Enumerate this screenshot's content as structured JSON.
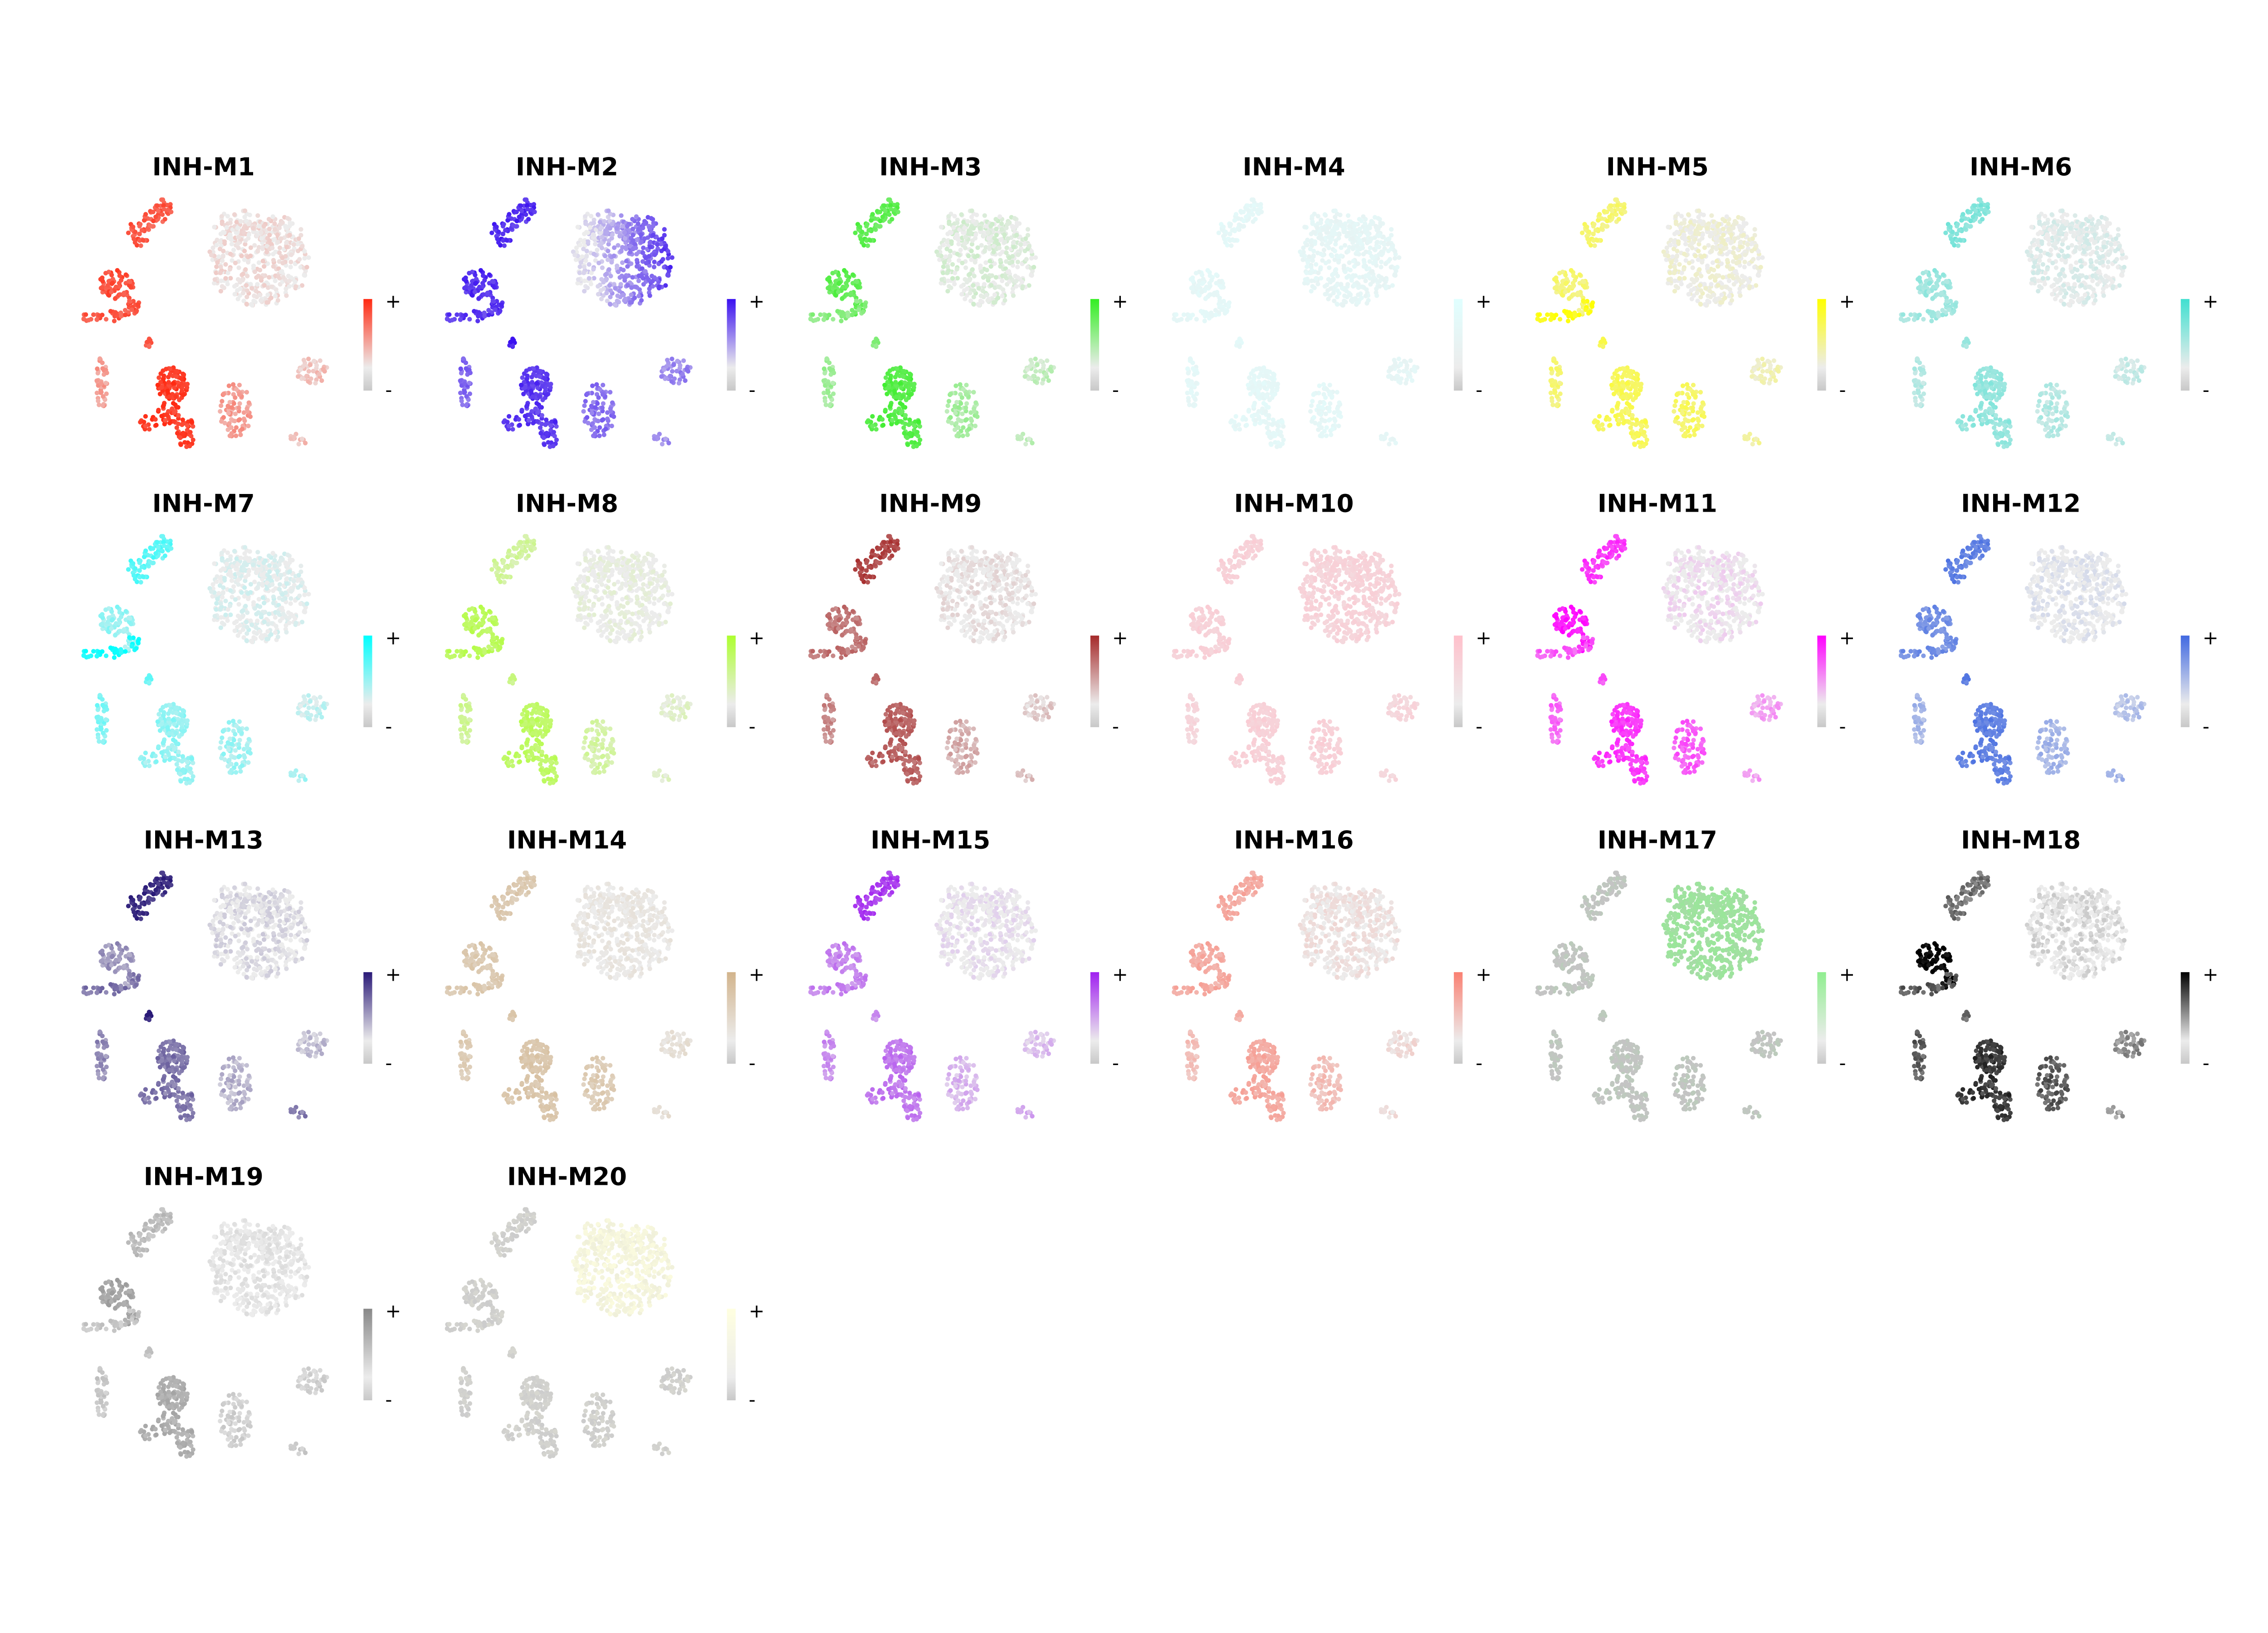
{
  "chart_data": {
    "type": "scatter",
    "subtype": "umap-feature-grid",
    "colorbar_labels": {
      "max": "+",
      "min": "-"
    },
    "clusters": [
      "top-left-upper",
      "left-middle",
      "left-tail",
      "small-streak",
      "left-vertical",
      "bottom-center",
      "bottom-right-mid",
      "right-small",
      "bottom-tiny",
      "large-right"
    ],
    "panels": [
      {
        "title": "INH-M1",
        "high_color": "#ff2a12",
        "low_color": "#ececec",
        "levels": [
          0.75,
          0.8,
          0.75,
          0.7,
          0.4,
          0.9,
          0.4,
          0.2,
          0.2,
          0.05
        ]
      },
      {
        "title": "INH-M2",
        "high_color": "#3a10f0",
        "low_color": "#ececec",
        "levels": [
          0.85,
          0.85,
          0.8,
          0.9,
          0.6,
          0.8,
          0.55,
          0.45,
          0.4,
          0.5
        ]
      },
      {
        "title": "INH-M3",
        "high_color": "#33ee22",
        "low_color": "#ececec",
        "levels": [
          0.75,
          0.75,
          0.5,
          0.5,
          0.4,
          0.8,
          0.35,
          0.2,
          0.2,
          0.05
        ]
      },
      {
        "title": "INH-M4",
        "high_color": "#e0ffff",
        "low_color": "#ececec",
        "levels": [
          0.6,
          0.6,
          0.6,
          0.6,
          0.6,
          0.6,
          0.6,
          0.5,
          0.5,
          0.5
        ]
      },
      {
        "title": "INH-M5",
        "high_color": "#ffff00",
        "low_color": "#ececec",
        "levels": [
          0.5,
          0.5,
          0.9,
          0.6,
          0.5,
          0.6,
          0.55,
          0.2,
          0.3,
          0.05
        ]
      },
      {
        "title": "INH-M6",
        "high_color": "#40e0d0",
        "low_color": "#ececec",
        "levels": [
          0.6,
          0.45,
          0.4,
          0.4,
          0.3,
          0.5,
          0.3,
          0.2,
          0.2,
          0.05
        ]
      },
      {
        "title": "INH-M7",
        "high_color": "#00ffff",
        "low_color": "#ececec",
        "levels": [
          0.6,
          0.35,
          0.9,
          0.5,
          0.45,
          0.35,
          0.3,
          0.15,
          0.25,
          0.02
        ]
      },
      {
        "title": "INH-M8",
        "high_color": "#adff2f",
        "low_color": "#ececec",
        "levels": [
          0.4,
          0.75,
          0.75,
          0.5,
          0.45,
          0.7,
          0.35,
          0.15,
          0.15,
          0.02
        ]
      },
      {
        "title": "INH-M9",
        "high_color": "#a52a2a",
        "low_color": "#ececec",
        "levels": [
          0.85,
          0.6,
          0.6,
          0.6,
          0.5,
          0.7,
          0.3,
          0.15,
          0.2,
          0.02
        ]
      },
      {
        "title": "INH-M10",
        "high_color": "#ffc0cb",
        "low_color": "#ececec",
        "levels": [
          0.6,
          0.6,
          0.6,
          0.6,
          0.5,
          0.6,
          0.6,
          0.5,
          0.45,
          0.55
        ]
      },
      {
        "title": "INH-M11",
        "high_color": "#ff00ff",
        "low_color": "#ececec",
        "levels": [
          0.75,
          0.9,
          0.6,
          0.6,
          0.55,
          0.75,
          0.6,
          0.3,
          0.3,
          0.02
        ]
      },
      {
        "title": "INH-M12",
        "high_color": "#4169e1",
        "low_color": "#ececec",
        "levels": [
          0.8,
          0.7,
          0.7,
          0.8,
          0.4,
          0.8,
          0.4,
          0.3,
          0.4,
          0.02
        ]
      },
      {
        "title": "INH-M13",
        "high_color": "#2a1a78",
        "low_color": "#ececec",
        "levels": [
          0.9,
          0.4,
          0.55,
          0.9,
          0.45,
          0.55,
          0.25,
          0.2,
          0.5,
          0.05
        ]
      },
      {
        "title": "INH-M14",
        "high_color": "#d2b48c",
        "low_color": "#ececec",
        "levels": [
          0.6,
          0.6,
          0.6,
          0.6,
          0.55,
          0.65,
          0.55,
          0.2,
          0.2,
          0.08
        ]
      },
      {
        "title": "INH-M15",
        "high_color": "#a020f0",
        "low_color": "#ececec",
        "levels": [
          0.85,
          0.5,
          0.5,
          0.4,
          0.45,
          0.55,
          0.25,
          0.2,
          0.3,
          0.02
        ]
      },
      {
        "title": "INH-M16",
        "high_color": "#fa8072",
        "low_color": "#ececec",
        "levels": [
          0.6,
          0.6,
          0.6,
          0.5,
          0.4,
          0.6,
          0.4,
          0.15,
          0.1,
          0.08
        ]
      },
      {
        "title": "INH-M17",
        "high_color": "#90ee90",
        "low_color": "#c4c4c4",
        "levels": [
          0.05,
          0.05,
          0.05,
          0.05,
          0.05,
          0.05,
          0.05,
          0.05,
          0.05,
          0.7
        ]
      },
      {
        "title": "INH-M18",
        "high_color": "#000000",
        "low_color": "#ececec",
        "levels": [
          0.5,
          1.0,
          0.6,
          0.5,
          0.6,
          0.75,
          0.6,
          0.4,
          0.3,
          0.03
        ]
      },
      {
        "title": "INH-M19",
        "high_color": "#888888",
        "low_color": "#ececec",
        "levels": [
          0.45,
          0.7,
          0.35,
          0.35,
          0.35,
          0.6,
          0.25,
          0.25,
          0.3,
          0.05
        ]
      },
      {
        "title": "INH-M20",
        "high_color": "#ffffe0",
        "low_color": "#cccccc",
        "levels": [
          0.1,
          0.1,
          0.1,
          0.1,
          0.1,
          0.1,
          0.1,
          0.1,
          0.1,
          0.8
        ]
      }
    ]
  }
}
